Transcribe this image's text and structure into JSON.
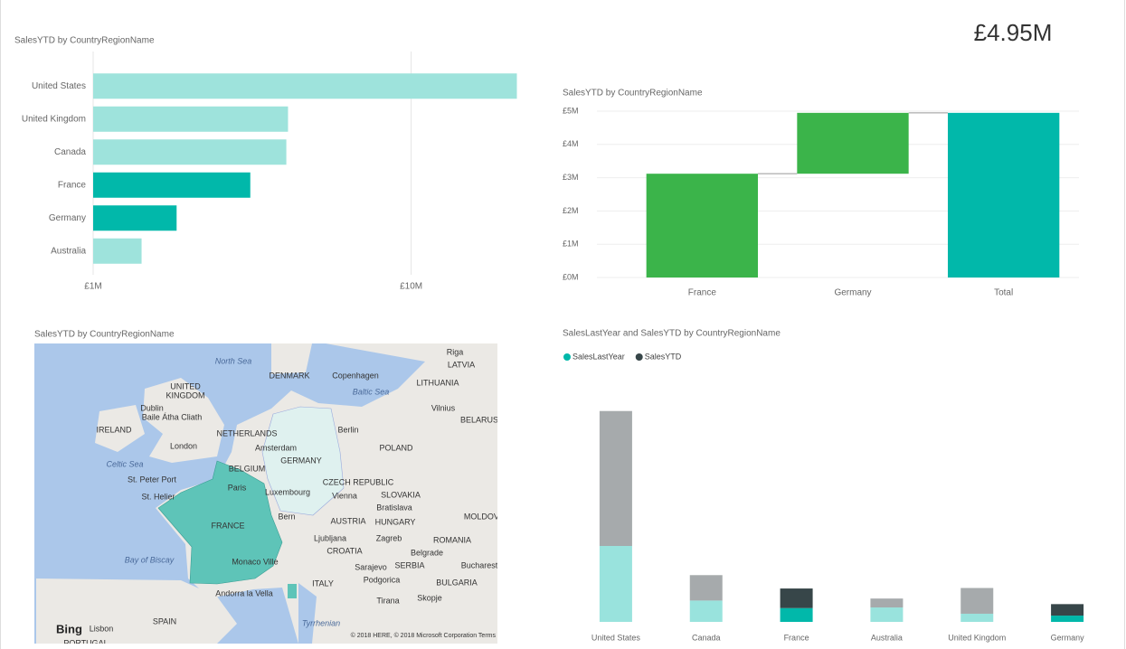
{
  "card": {
    "value": "£4.95M"
  },
  "map": {
    "title": "SalesYTD by CountryRegionName",
    "labels": [
      "North Sea",
      "Riga",
      "LATVIA",
      "DENMARK",
      "Copenhagen",
      "Baltic Sea",
      "LITHUANIA",
      "UNITED",
      "KINGDOM",
      "Dublin",
      "Baile Átha Cliath",
      "Vilnius",
      "BELARUS",
      "IRELAND",
      "NETHERLANDS",
      "Berlin",
      "London",
      "Amsterdam",
      "POLAND",
      "Celtic Sea",
      "GERMANY",
      "BELGIUM",
      "St. Peter Port",
      "CZECH REPUBLIC",
      "St. Helier",
      "Paris",
      "Luxembourg",
      "Vienna",
      "SLOVAKIA",
      "Bratislava",
      "FRANCE",
      "Bern",
      "AUSTRIA",
      "HUNGARY",
      "MOLDOVA",
      "Ljubljana",
      "Zagreb",
      "ROMANIA",
      "CROATIA",
      "Belgrade",
      "Bay of Biscay",
      "Monaco Ville",
      "Sarajevo",
      "SERBIA",
      "Bucharest",
      "Podgorica",
      "BULGARIA",
      "ITALY",
      "Andorra la Vella",
      "Skopje",
      "Tirana",
      "SPAIN",
      "Tyrrhenian",
      "Lisbon",
      "PORTUGAL"
    ],
    "logo": "Bing",
    "attribution": "© 2018 HERE, © 2018 Microsoft Corporation  Terms"
  },
  "chart_data": [
    {
      "type": "bar",
      "title": "SalesYTD by CountryRegionName",
      "categories": [
        "United States",
        "United Kingdom",
        "Canada",
        "France",
        "Germany",
        "Australia"
      ],
      "values": [
        21500000,
        4100000,
        4050000,
        3120000,
        1830000,
        1420000
      ],
      "highlight": [
        false,
        false,
        false,
        true,
        true,
        false
      ],
      "color": "#01b8aa",
      "faded_color": "#9ee3dc",
      "xscale": "log",
      "xlim": [
        1000000,
        22000000
      ],
      "xticks": [
        {
          "value": 1000000,
          "label": "£1M"
        },
        {
          "value": 10000000,
          "label": "£10M"
        }
      ],
      "grid": true
    },
    {
      "type": "waterfall",
      "title": "SalesYTD by CountryRegionName",
      "categories": [
        "France",
        "Germany",
        "Total"
      ],
      "values": [
        3120000,
        1830000,
        4950000
      ],
      "last_is_total": true,
      "increase_color": "#3bb44a",
      "total_color": "#01b8aa",
      "ylim": [
        0,
        5000000
      ],
      "yticks": [
        {
          "value": 0,
          "label": "£0M"
        },
        {
          "value": 1000000,
          "label": "£1M"
        },
        {
          "value": 2000000,
          "label": "£2M"
        },
        {
          "value": 3000000,
          "label": "£3M"
        },
        {
          "value": 4000000,
          "label": "£4M"
        },
        {
          "value": 5000000,
          "label": "£5M"
        }
      ],
      "grid": true
    },
    {
      "type": "stacked_bar",
      "title": "SalesLastYear and SalesYTD by CountryRegionName",
      "categories": [
        "United States",
        "Canada",
        "France",
        "Australia",
        "United Kingdom",
        "Germany"
      ],
      "highlight": [
        false,
        false,
        true,
        false,
        false,
        true
      ],
      "series": [
        {
          "name": "SalesLastYear",
          "color": "#01b8aa",
          "faded_color": "#99e3dd",
          "values": [
            12100000,
            3400000,
            2200000,
            2300000,
            1300000,
            1000000
          ]
        },
        {
          "name": "SalesYTD",
          "color": "#374649",
          "faded_color": "#a6aaac",
          "values": [
            21500000,
            4050000,
            3120000,
            1420000,
            4100000,
            1830000
          ]
        }
      ],
      "ylim": [
        0,
        35000000
      ],
      "legend": "top-left"
    }
  ]
}
